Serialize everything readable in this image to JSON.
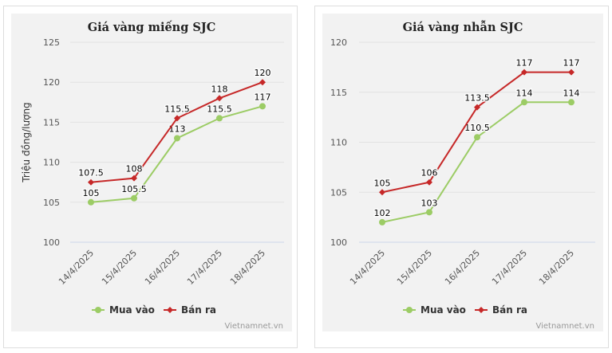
{
  "chart_data": [
    {
      "type": "line",
      "title": "Giá vàng miếng SJC",
      "ylabel": "Triệu đồng/lượng",
      "xlabel": "",
      "categories": [
        "14/4/2025",
        "15/4/2025",
        "16/4/2025",
        "17/4/2025",
        "18/4/2025"
      ],
      "yticks": [
        100,
        105,
        110,
        115,
        120,
        125
      ],
      "ylim": [
        100,
        125
      ],
      "grid": true,
      "legend_position": "bottom",
      "series": [
        {
          "name": "Mua vào",
          "color": "#9ccc65",
          "marker": "circle",
          "values": [
            105,
            105.5,
            113,
            115.5,
            117
          ]
        },
        {
          "name": "Bán ra",
          "color": "#c62828",
          "marker": "diamond",
          "values": [
            107.5,
            108,
            115.5,
            118,
            120
          ]
        }
      ],
      "credit": "Vietnamnet.vn"
    },
    {
      "type": "line",
      "title": "Giá vàng nhẫn SJC",
      "ylabel": "",
      "xlabel": "",
      "categories": [
        "14/4/2025",
        "15/4/2025",
        "16/4/2025",
        "17/4/2025",
        "18/4/2025"
      ],
      "yticks": [
        100,
        105,
        110,
        115,
        120
      ],
      "ylim": [
        100,
        120
      ],
      "grid": true,
      "legend_position": "bottom",
      "series": [
        {
          "name": "Mua vào",
          "color": "#9ccc65",
          "marker": "circle",
          "values": [
            102,
            103,
            110.5,
            114,
            114
          ]
        },
        {
          "name": "Bán ra",
          "color": "#c62828",
          "marker": "diamond",
          "values": [
            105,
            106,
            113.5,
            117,
            117
          ]
        }
      ],
      "credit": "Vietnamnet.vn"
    }
  ]
}
